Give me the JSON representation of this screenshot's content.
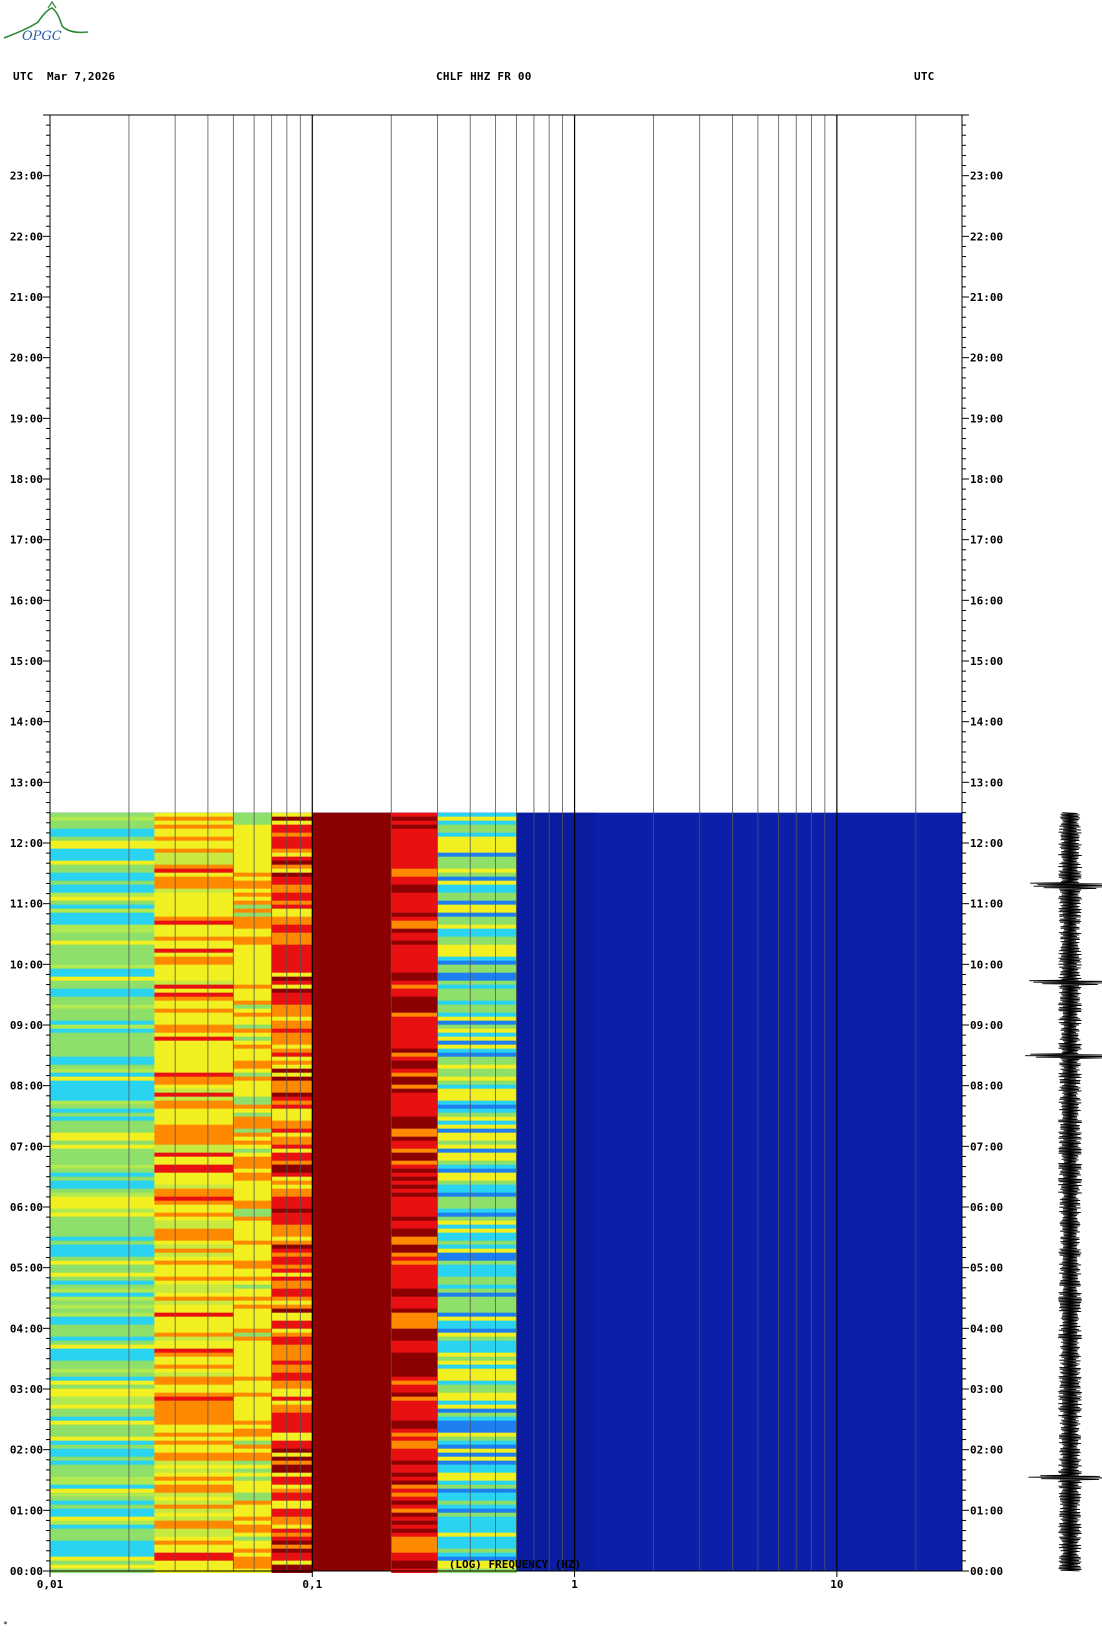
{
  "logo": {
    "text": "OPGC"
  },
  "header": {
    "left_tz": "UTC",
    "date": "Mar 7,2026",
    "station": "CHLF HHZ FR 00",
    "right_tz": "UTC"
  },
  "footnote": "*",
  "colors": {
    "blue": "#0b1fa8",
    "darkred": "#8b0000",
    "red": "#e81010",
    "orange": "#ff8a00",
    "yellow": "#f2f020",
    "green": "#8fe06a",
    "cyan": "#2ad4f0"
  },
  "chart_data": {
    "type": "heatmap",
    "title": "CHLF HHZ FR 00",
    "xlabel": "(LOG) FREQUENCY (HZ)",
    "ylabel": "UTC",
    "x_scale": "log",
    "xlim": [
      0.01,
      30
    ],
    "x_ticks": [
      "0,01",
      "0,1",
      "1",
      "10"
    ],
    "x_tick_values": [
      0.01,
      0.1,
      1,
      10
    ],
    "x_gridlines": [
      0.02,
      0.03,
      0.04,
      0.05,
      0.06,
      0.07,
      0.08,
      0.09,
      0.1,
      0.2,
      0.3,
      0.4,
      0.5,
      0.6,
      0.7,
      0.8,
      0.9,
      1,
      2,
      3,
      4,
      5,
      6,
      7,
      8,
      9,
      10,
      20
    ],
    "ylim_hours": [
      0,
      24
    ],
    "y_ticks": [
      "00:00",
      "01:00",
      "02:00",
      "03:00",
      "04:00",
      "05:00",
      "06:00",
      "07:00",
      "08:00",
      "09:00",
      "10:00",
      "11:00",
      "12:00",
      "13:00",
      "14:00",
      "15:00",
      "16:00",
      "17:00",
      "18:00",
      "19:00",
      "20:00",
      "21:00",
      "22:00",
      "23:00"
    ],
    "data_end_hour": 12.5,
    "grid": true,
    "spectral_bands": [
      {
        "from_hz": 0.01,
        "to_hz": 0.025,
        "level": "green-cyan"
      },
      {
        "from_hz": 0.025,
        "to_hz": 0.05,
        "level": "yellow-orange"
      },
      {
        "from_hz": 0.05,
        "to_hz": 0.07,
        "level": "yellow"
      },
      {
        "from_hz": 0.07,
        "to_hz": 0.1,
        "level": "orange-red"
      },
      {
        "from_hz": 0.1,
        "to_hz": 0.2,
        "level": "dark-red"
      },
      {
        "from_hz": 0.2,
        "to_hz": 0.3,
        "level": "red"
      },
      {
        "from_hz": 0.3,
        "to_hz": 0.6,
        "level": "yellow-cyan"
      },
      {
        "from_hz": 0.6,
        "to_hz": 30,
        "level": "blue"
      }
    ],
    "seismogram_events_hours": [
      1.55,
      8.5,
      9.7,
      11.3
    ]
  }
}
